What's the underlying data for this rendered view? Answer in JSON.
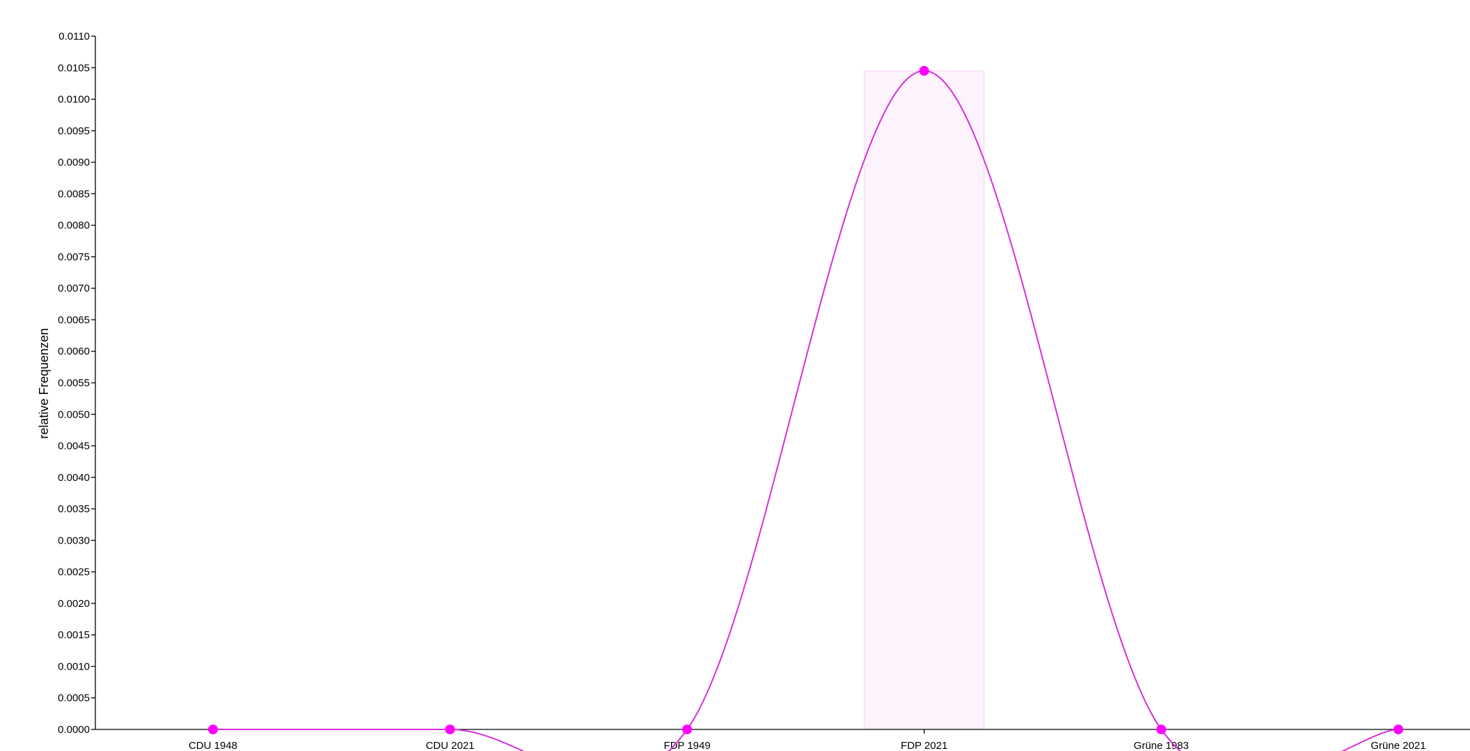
{
  "chart_data": {
    "type": "line",
    "categories": [
      "CDU 1948",
      "CDU 2021",
      "FDP 1949",
      "FDP 2021",
      "Grüne 1983",
      "Grüne 2021"
    ],
    "series": [
      {
        "values": [
          0.0,
          0.0,
          0.0,
          0.01045,
          0.0,
          0.0
        ]
      }
    ],
    "xlabel": "",
    "ylabel": "relative Frequenzen",
    "ylim": [
      0,
      0.011
    ],
    "ytick_step": 0.0005,
    "grid": false,
    "highlight_category": "FDP 2021",
    "colors": {
      "line": "#d62ed9",
      "point": "#ff00ff",
      "highlight_fill": "#fdf3fc",
      "highlight_stroke": "#f6d8f1",
      "axis": "#000000"
    }
  }
}
